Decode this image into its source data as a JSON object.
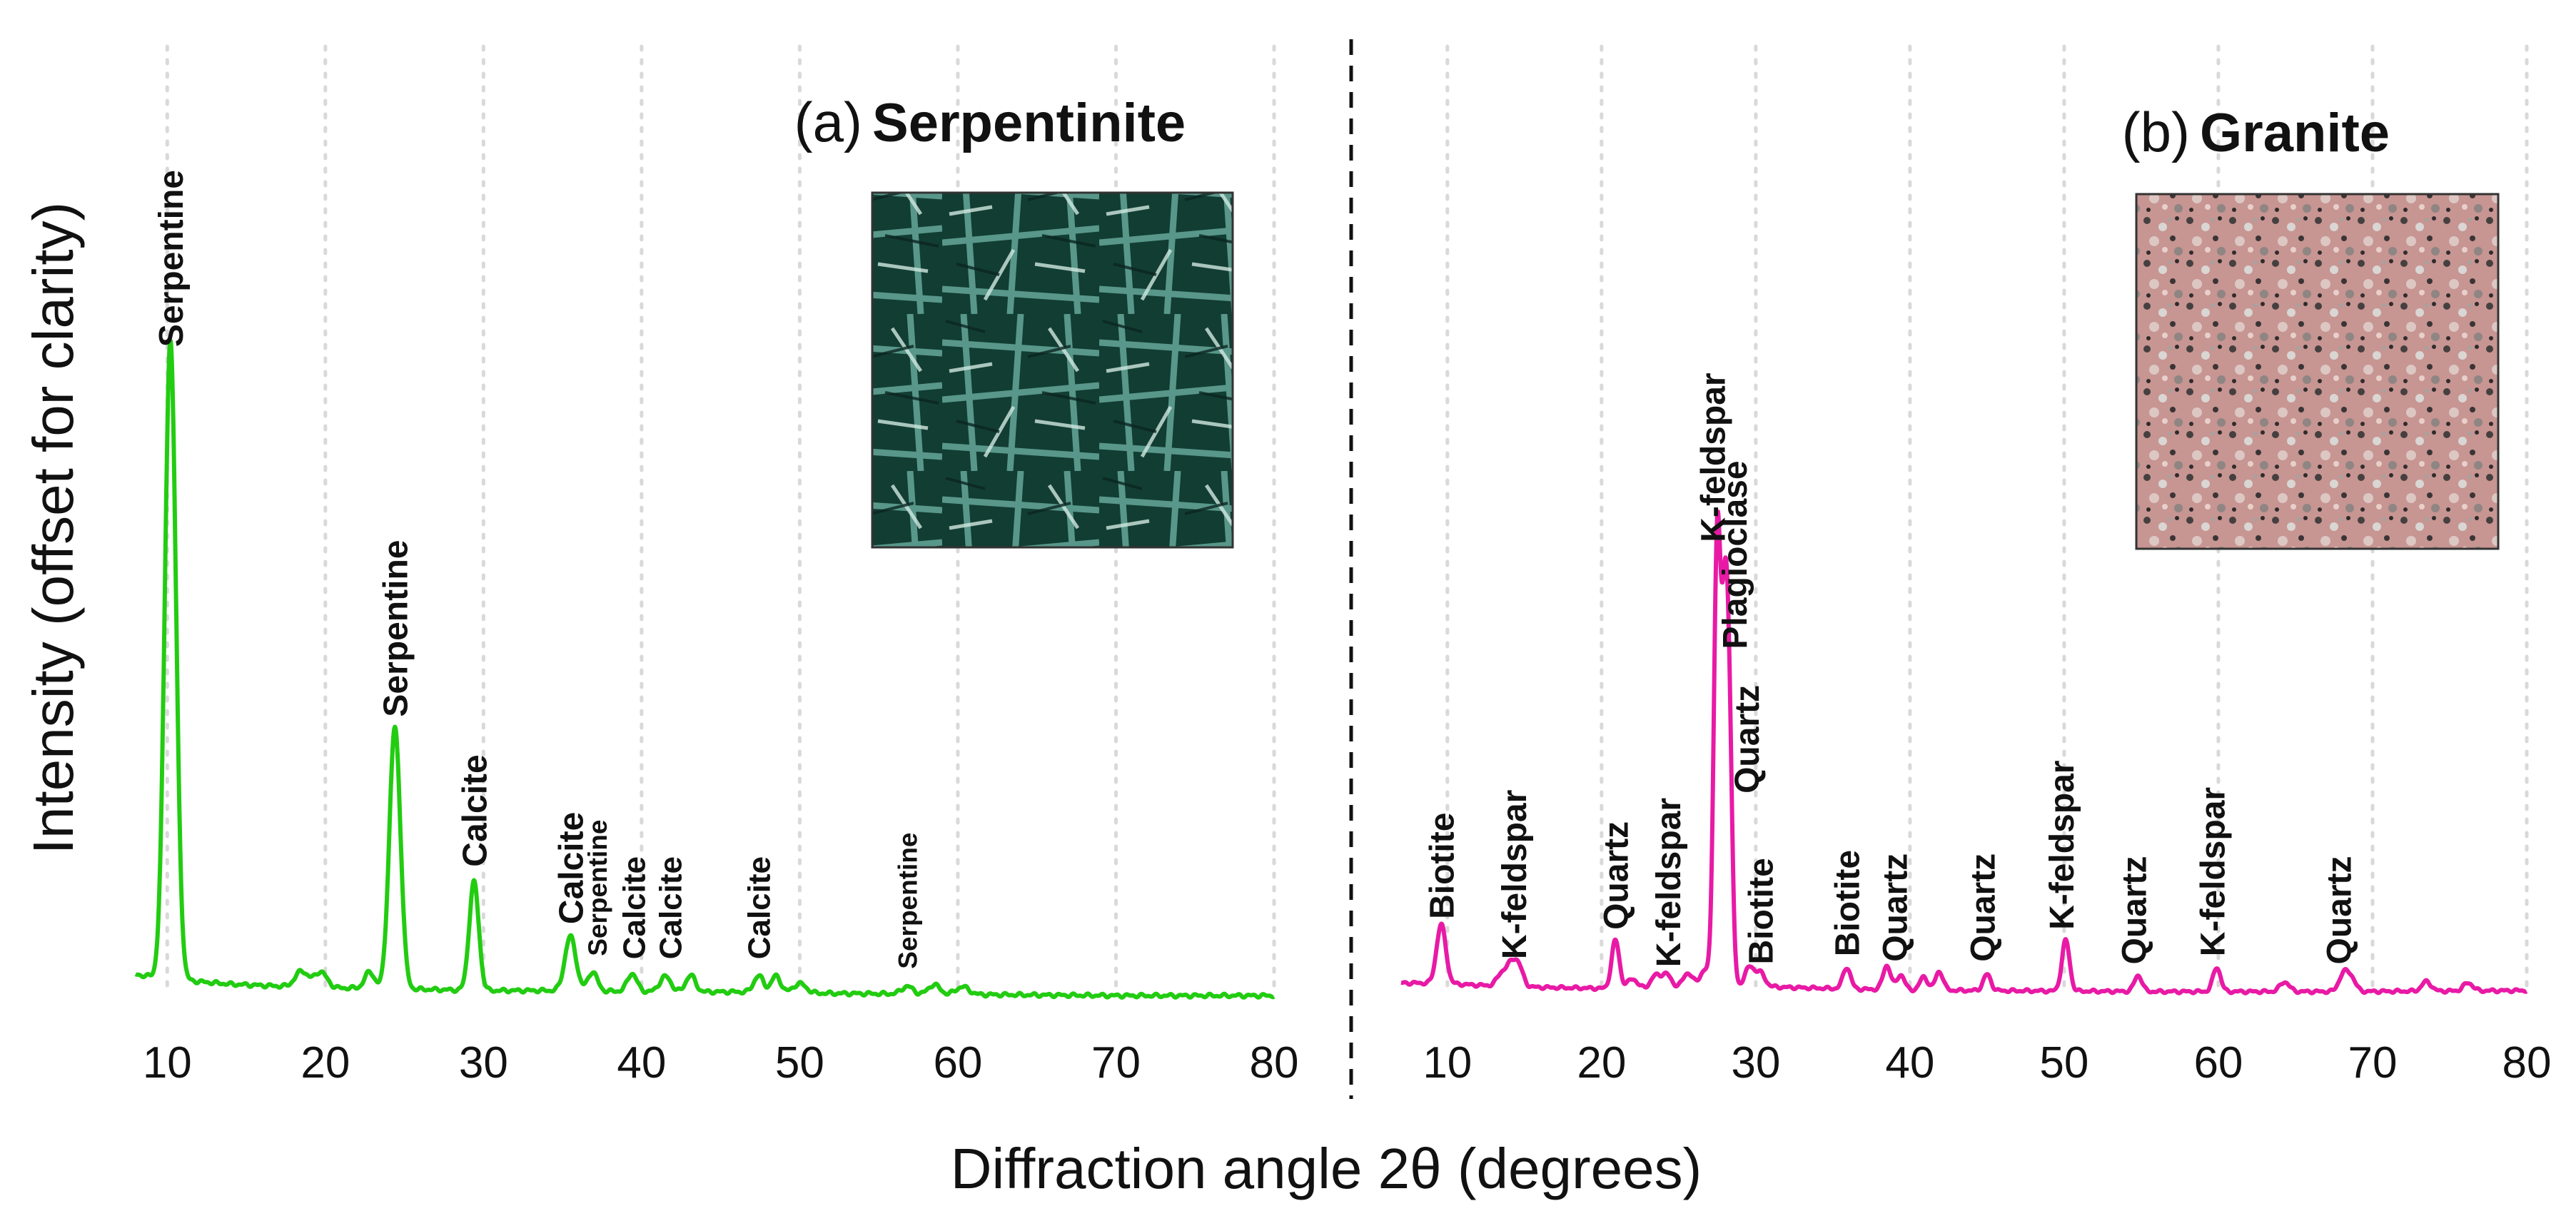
{
  "figure": {
    "ylabel": "Intensity (offset for clarity)",
    "xlabel": "Diffraction angle 2θ (degrees)"
  },
  "chart_data": [
    {
      "type": "line",
      "panel": "(a)",
      "title": "Serpentinite",
      "color": "#22cc11",
      "xlim": [
        8,
        80
      ],
      "ylim": [
        0,
        100
      ],
      "xticks": [
        10,
        20,
        30,
        40,
        50,
        60,
        70,
        80
      ],
      "grid": "vertical dotted",
      "baseline": [
        [
          8,
          3.5
        ],
        [
          9,
          3.2
        ],
        [
          10,
          3.0
        ],
        [
          12,
          2.4
        ],
        [
          14,
          2.0
        ],
        [
          16,
          1.8
        ],
        [
          18,
          1.6
        ],
        [
          20,
          1.4
        ],
        [
          22,
          1.4
        ],
        [
          24,
          1.3
        ],
        [
          26,
          1.2
        ],
        [
          30,
          1.0
        ],
        [
          34,
          1.0
        ],
        [
          38,
          0.9
        ],
        [
          42,
          0.8
        ],
        [
          46,
          0.8
        ],
        [
          50,
          0.6
        ],
        [
          55,
          0.5
        ],
        [
          60,
          0.4
        ],
        [
          65,
          0.3
        ],
        [
          70,
          0.2
        ],
        [
          75,
          0.2
        ],
        [
          80,
          0.2
        ]
      ],
      "peaks": [
        {
          "x": 10.2,
          "y": 100,
          "w": 0.35
        },
        {
          "x": 18.5,
          "y": 2.5,
          "w": 0.4
        },
        {
          "x": 19.7,
          "y": 2.5,
          "w": 0.4
        },
        {
          "x": 22.8,
          "y": 2.6,
          "w": 0.3
        },
        {
          "x": 24.4,
          "y": 41,
          "w": 0.35
        },
        {
          "x": 29.4,
          "y": 17,
          "w": 0.3
        },
        {
          "x": 35.5,
          "y": 8.5,
          "w": 0.35
        },
        {
          "x": 36.9,
          "y": 3.0,
          "w": 0.3
        },
        {
          "x": 39.4,
          "y": 2.8,
          "w": 0.3
        },
        {
          "x": 41.5,
          "y": 2.4,
          "w": 0.35
        },
        {
          "x": 43.1,
          "y": 2.6,
          "w": 0.3
        },
        {
          "x": 47.4,
          "y": 2.6,
          "w": 0.3
        },
        {
          "x": 48.5,
          "y": 2.6,
          "w": 0.3
        },
        {
          "x": 50.0,
          "y": 1.5,
          "w": 0.4
        },
        {
          "x": 56.8,
          "y": 1.2,
          "w": 0.35
        },
        {
          "x": 58.5,
          "y": 1.5,
          "w": 0.35
        },
        {
          "x": 60.3,
          "y": 1.2,
          "w": 0.4
        }
      ],
      "labels": [
        {
          "text": "Serpentine",
          "x": 10.2,
          "y": 101,
          "size": 48
        },
        {
          "text": "Serpentine",
          "x": 24.4,
          "y": 43,
          "size": 48
        },
        {
          "text": "Calcite",
          "x": 29.4,
          "y": 19.5,
          "size": 48
        },
        {
          "text": "Calcite",
          "x": 35.5,
          "y": 10.5,
          "size": 48
        },
        {
          "text": "Serpentine",
          "x": 37.2,
          "y": 5.5,
          "size": 37
        },
        {
          "text": "Calcite",
          "x": 39.5,
          "y": 5,
          "size": 44
        },
        {
          "text": "Calcite",
          "x": 41.8,
          "y": 5,
          "size": 44
        },
        {
          "text": "Calcite",
          "x": 47.4,
          "y": 5,
          "size": 44
        },
        {
          "text": "Serpentine",
          "x": 56.8,
          "y": 3.5,
          "size": 37
        }
      ],
      "inset": {
        "name": "serpentinite-photo",
        "base": "#123d33"
      }
    },
    {
      "type": "line",
      "panel": "(b)",
      "title": "Granite",
      "color": "#e81aa5",
      "xlim": [
        7,
        80
      ],
      "ylim": [
        0,
        100
      ],
      "xticks": [
        10,
        20,
        30,
        40,
        50,
        60,
        70,
        80
      ],
      "grid": "vertical dotted",
      "baseline": [
        [
          7,
          2.6
        ],
        [
          8,
          2.6
        ],
        [
          10,
          2.5
        ],
        [
          12,
          2.2
        ],
        [
          14,
          2.0
        ],
        [
          16,
          1.8
        ],
        [
          18,
          1.7
        ],
        [
          20,
          1.6
        ],
        [
          22,
          1.6
        ],
        [
          24,
          1.8
        ],
        [
          26,
          2.0
        ],
        [
          28,
          2.2
        ],
        [
          30,
          2.0
        ],
        [
          32,
          1.8
        ],
        [
          36,
          1.5
        ],
        [
          40,
          1.3
        ],
        [
          44,
          1.2
        ],
        [
          50,
          1.1
        ],
        [
          56,
          1.0
        ],
        [
          62,
          1.0
        ],
        [
          68,
          1.0
        ],
        [
          74,
          1.1
        ],
        [
          80,
          1.2
        ]
      ],
      "peaks": [
        {
          "x": 9.6,
          "y": 11,
          "w": 0.3
        },
        {
          "x": 13.5,
          "y": 2.2,
          "w": 0.3
        },
        {
          "x": 14.1,
          "y": 3.5,
          "w": 0.3
        },
        {
          "x": 14.6,
          "y": 3.8,
          "w": 0.3
        },
        {
          "x": 20.9,
          "y": 9,
          "w": 0.25
        },
        {
          "x": 22.0,
          "y": 1.8,
          "w": 0.3
        },
        {
          "x": 23.5,
          "y": 2.2,
          "w": 0.3
        },
        {
          "x": 24.2,
          "y": 2.4,
          "w": 0.3
        },
        {
          "x": 25.6,
          "y": 2.5,
          "w": 0.3
        },
        {
          "x": 26.7,
          "y": 3.0,
          "w": 0.3
        },
        {
          "x": 27.5,
          "y": 83,
          "w": 0.22
        },
        {
          "x": 28.0,
          "y": 62,
          "w": 0.22
        },
        {
          "x": 28.3,
          "y": 35,
          "w": 0.2
        },
        {
          "x": 29.6,
          "y": 3.5,
          "w": 0.3
        },
        {
          "x": 30.3,
          "y": 2.5,
          "w": 0.3
        },
        {
          "x": 35.9,
          "y": 4,
          "w": 0.25
        },
        {
          "x": 38.5,
          "y": 4.5,
          "w": 0.25
        },
        {
          "x": 39.4,
          "y": 2.8,
          "w": 0.25
        },
        {
          "x": 40.9,
          "y": 2.5,
          "w": 0.25
        },
        {
          "x": 41.9,
          "y": 3.5,
          "w": 0.25
        },
        {
          "x": 45.0,
          "y": 3.0,
          "w": 0.25
        },
        {
          "x": 50.1,
          "y": 9.5,
          "w": 0.25
        },
        {
          "x": 54.8,
          "y": 3.0,
          "w": 0.25
        },
        {
          "x": 59.9,
          "y": 4.5,
          "w": 0.25
        },
        {
          "x": 64.3,
          "y": 1.8,
          "w": 0.3
        },
        {
          "x": 68.1,
          "y": 3.0,
          "w": 0.3
        },
        {
          "x": 68.6,
          "y": 2.5,
          "w": 0.3
        },
        {
          "x": 73.5,
          "y": 1.8,
          "w": 0.3
        },
        {
          "x": 76.2,
          "y": 1.5,
          "w": 0.3
        }
      ],
      "labels": [
        {
          "text": "Biotite",
          "x": 9.6,
          "y": 13.5,
          "size": 48
        },
        {
          "text": "K-feldspar",
          "x": 14.3,
          "y": 6,
          "size": 48
        },
        {
          "text": "Quartz",
          "x": 20.9,
          "y": 11.5,
          "size": 48
        },
        {
          "text": "K-feldspar",
          "x": 24.3,
          "y": 4.5,
          "size": 48
        },
        {
          "text": "K-feldspar",
          "x": 27.2,
          "y": 84,
          "size": 48
        },
        {
          "text": "Plagioclase",
          "x": 28.6,
          "y": 64,
          "size": 48
        },
        {
          "text": "Quartz",
          "x": 29.4,
          "y": 37,
          "size": 48
        },
        {
          "text": "Biotite",
          "x": 30.3,
          "y": 5,
          "size": 48
        },
        {
          "text": "Biotite",
          "x": 35.9,
          "y": 6.5,
          "size": 48
        },
        {
          "text": "Quartz",
          "x": 39.0,
          "y": 5.5,
          "size": 48
        },
        {
          "text": "Quartz",
          "x": 44.7,
          "y": 5.5,
          "size": 48
        },
        {
          "text": "K-feldspar",
          "x": 49.8,
          "y": 11.5,
          "size": 48
        },
        {
          "text": "Quartz",
          "x": 54.5,
          "y": 5,
          "size": 48
        },
        {
          "text": "K-feldspar",
          "x": 59.6,
          "y": 6.5,
          "size": 48
        },
        {
          "text": "Quartz",
          "x": 67.8,
          "y": 5,
          "size": 48
        }
      ],
      "inset": {
        "name": "granite-photo",
        "base": "#c79592"
      }
    }
  ]
}
